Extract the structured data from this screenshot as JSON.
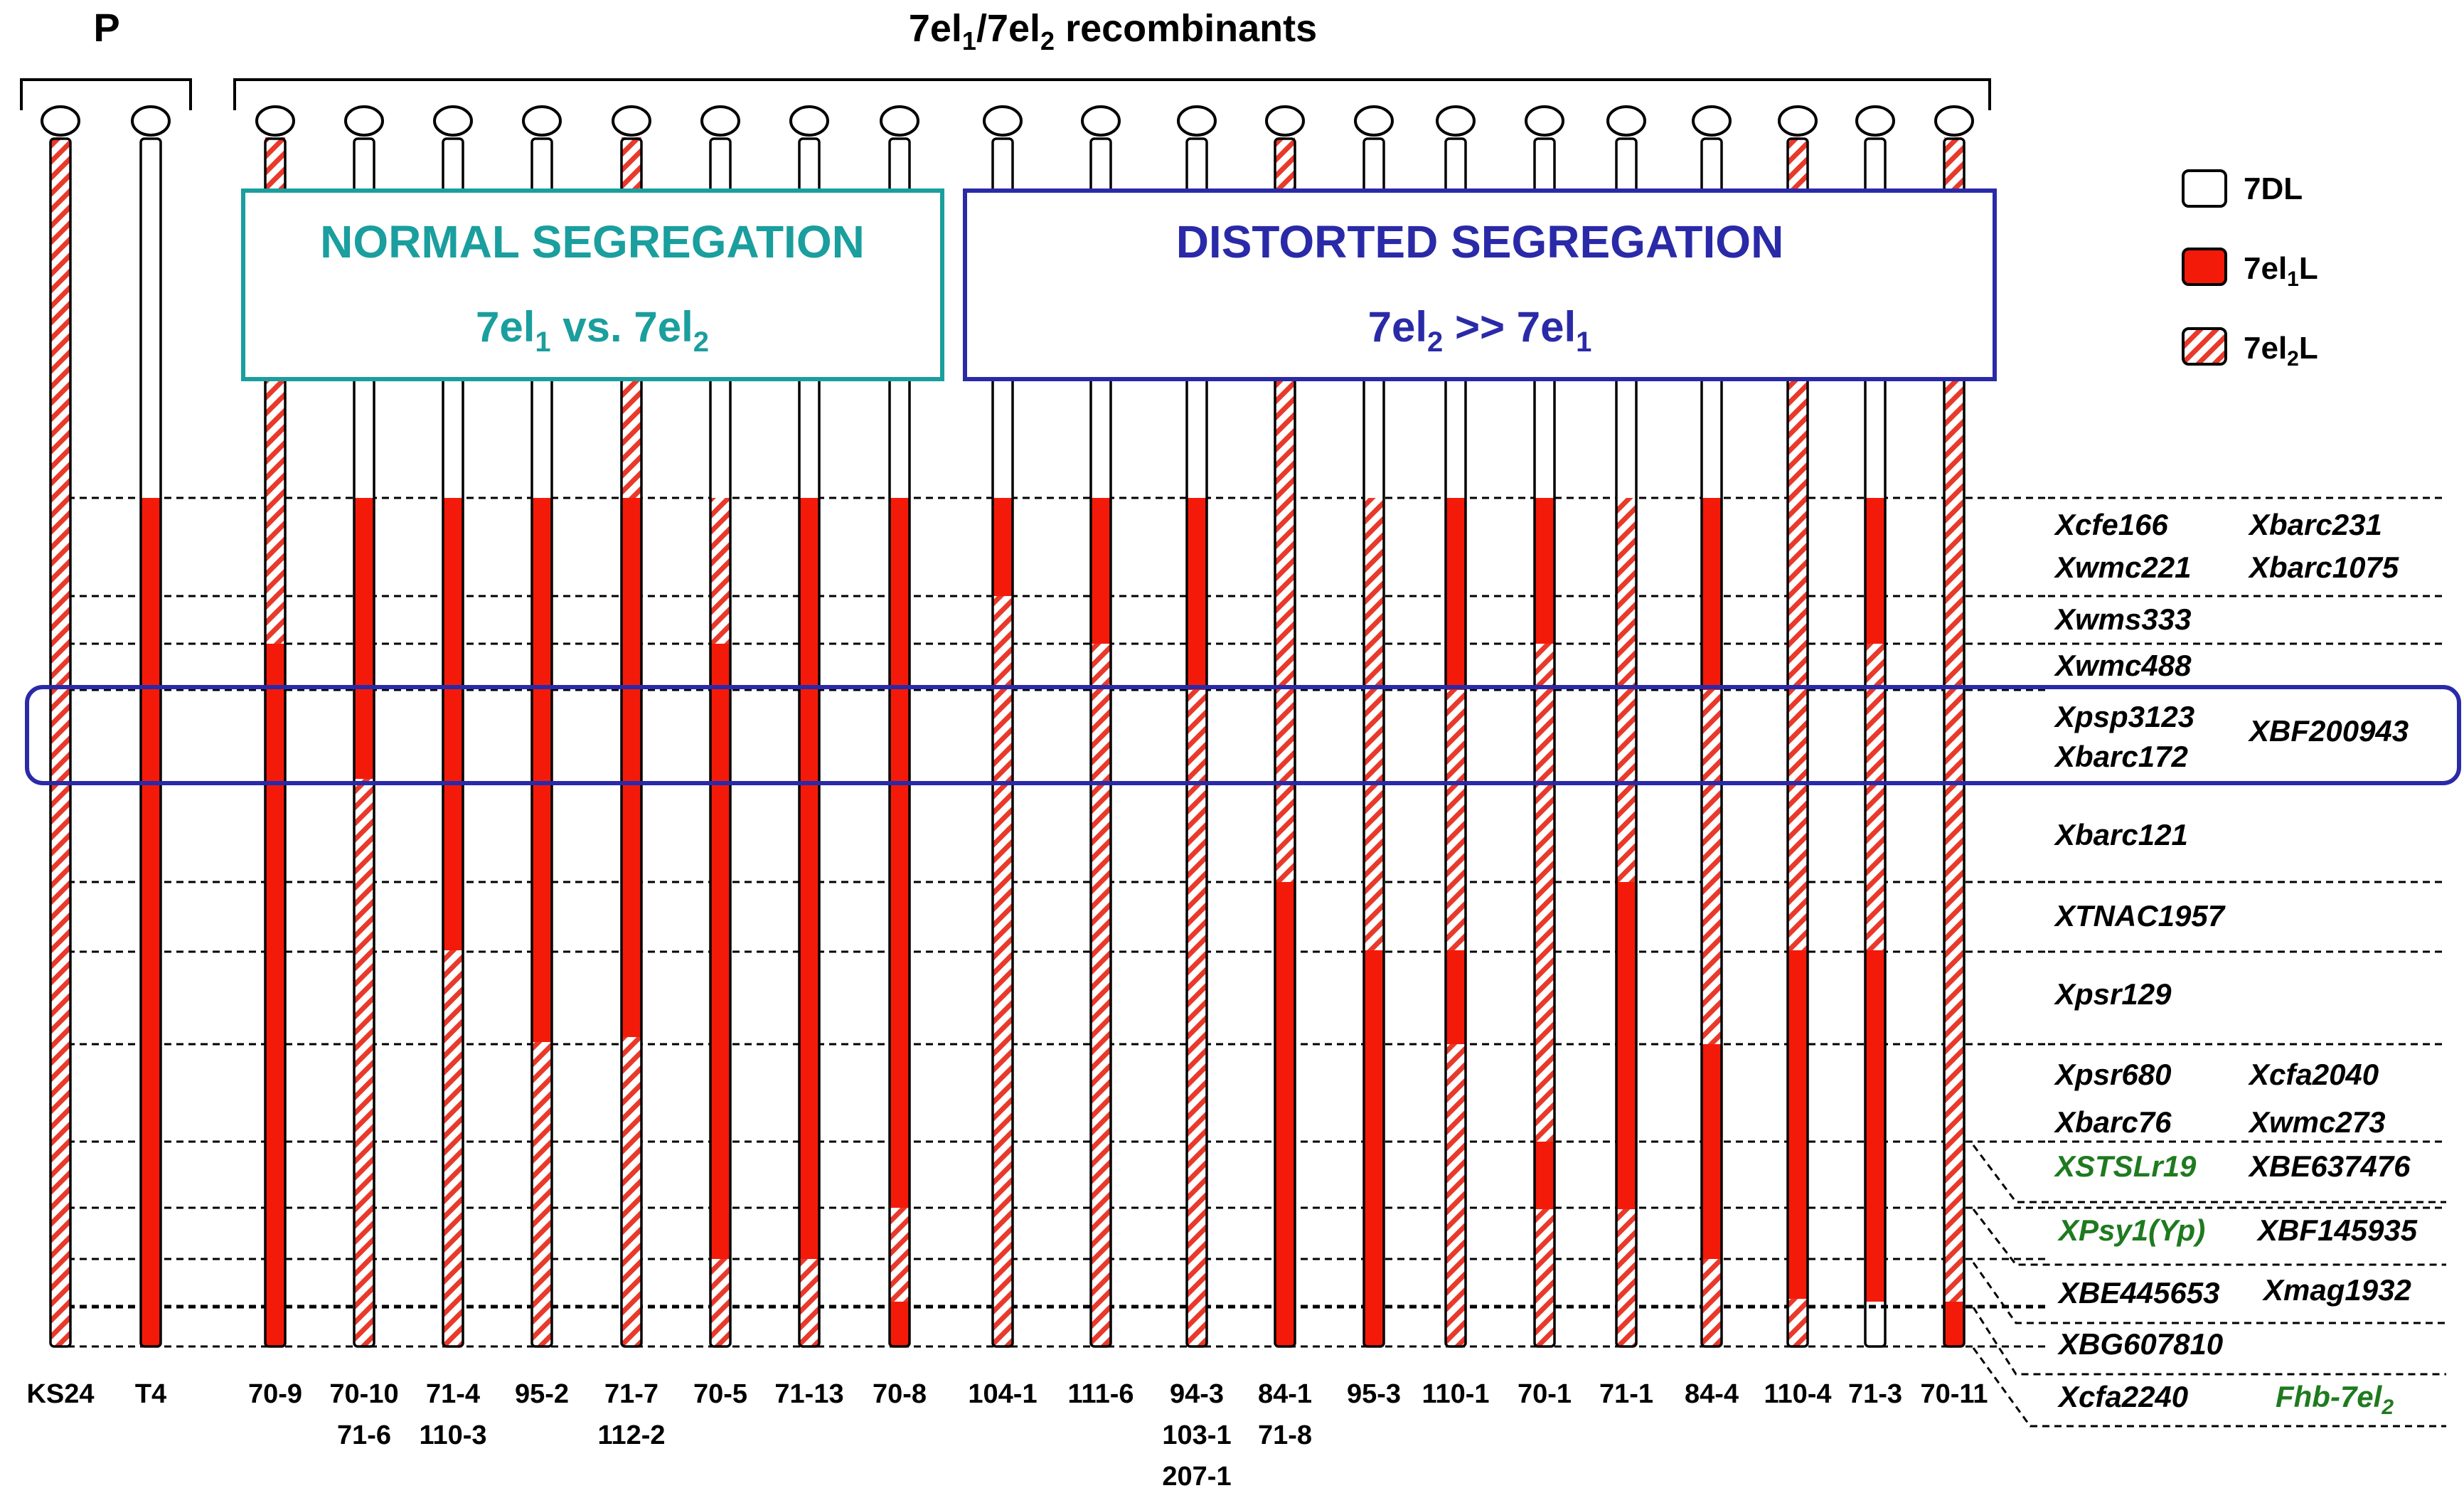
{
  "header": {
    "parents_label": "P",
    "recombinants_label": "7el",
    "recombinants_sub1": "1",
    "recombinants_mid": "/7el",
    "recombinants_sub2": "2",
    "recombinants_tail": " recombinants"
  },
  "boxes": {
    "normal": {
      "title": "NORMAL SEGREGATION",
      "line_a": "7el",
      "sub_a": "1",
      "line_b": " vs. 7el",
      "sub_b": "2",
      "color": "#1a9e9e"
    },
    "distorted": {
      "title": "DISTORTED SEGREGATION",
      "line_a": "7el",
      "sub_a": "2",
      "line_b": " >> 7el",
      "sub_b": "1",
      "color": "#2a2aa8"
    }
  },
  "legend": [
    {
      "key": "white",
      "label": "7DL"
    },
    {
      "key": "red",
      "label": "7el",
      "sub": "1",
      "tail": "L"
    },
    {
      "key": "hatch",
      "label": "7el",
      "sub": "2",
      "tail": "L"
    }
  ],
  "markers": [
    {
      "left": "Xcfe166",
      "right": "Xbarc231"
    },
    {
      "left": "Xwmc221",
      "right": "Xbarc1075"
    },
    {
      "left": "Xwms333",
      "right": ""
    },
    {
      "left": "Xwmc488",
      "right": ""
    },
    {
      "left": "Xpsp3123",
      "right": "XBF200943"
    },
    {
      "left": "Xbarc172",
      "right": ""
    },
    {
      "left": "Xbarc121",
      "right": ""
    },
    {
      "left": "XTNAC1957",
      "right": ""
    },
    {
      "left": "Xpsr129",
      "right": ""
    },
    {
      "left": "Xpsr680",
      "right": "Xcfa2040"
    },
    {
      "left": "Xbarc76",
      "right": "Xwmc273"
    },
    {
      "left": "XSTSLr19",
      "right": "XBE637476",
      "left_green": true
    },
    {
      "left": "XPsy1(Yp)",
      "right": "XBF145935",
      "left_green": true
    },
    {
      "left": "XBE445653",
      "right": "Xmag1932"
    },
    {
      "left": "XBG607810",
      "right": ""
    },
    {
      "left": "Xcfa2240",
      "right": "Fhb-7el",
      "right_sub": "2",
      "right_green": true
    }
  ],
  "columns": [
    {
      "lines": [
        "KS24"
      ],
      "pattern": [
        "hatch"
      ]
    },
    {
      "lines": [
        "T4"
      ],
      "pattern": [
        "white",
        "red"
      ]
    },
    {
      "lines": [
        "70-9"
      ],
      "pattern": [
        "hatch",
        "red"
      ]
    },
    {
      "lines": [
        "70-10",
        "71-6"
      ],
      "pattern": [
        "white",
        "red",
        "hatch"
      ]
    },
    {
      "lines": [
        "71-4",
        "110-3"
      ],
      "pattern": [
        "white",
        "red",
        "hatch"
      ]
    },
    {
      "lines": [
        "95-2"
      ],
      "pattern": [
        "white",
        "red",
        "hatch"
      ]
    },
    {
      "lines": [
        "71-7",
        "112-2"
      ],
      "pattern": [
        "hatch",
        "red",
        "hatch"
      ]
    },
    {
      "lines": [
        "70-5"
      ],
      "pattern": [
        "white",
        "hatch",
        "red",
        "hatch"
      ]
    },
    {
      "lines": [
        "71-13"
      ],
      "pattern": [
        "white",
        "red",
        "hatch"
      ]
    },
    {
      "lines": [
        "70-8"
      ],
      "pattern": [
        "white",
        "red",
        "hatch",
        "red"
      ]
    },
    {
      "lines": [
        "104-1"
      ],
      "pattern": [
        "white",
        "red",
        "hatch"
      ]
    },
    {
      "lines": [
        "111-6"
      ],
      "pattern": [
        "white",
        "red",
        "hatch"
      ]
    },
    {
      "lines": [
        "94-3",
        "103-1",
        "207-1"
      ],
      "pattern": [
        "white",
        "red",
        "hatch"
      ]
    },
    {
      "lines": [
        "84-1",
        "71-8"
      ],
      "pattern": [
        "hatch",
        "red"
      ]
    },
    {
      "lines": [
        "95-3"
      ],
      "pattern": [
        "white",
        "hatch",
        "red"
      ]
    },
    {
      "lines": [
        "110-1"
      ],
      "pattern": [
        "white",
        "red",
        "hatch",
        "red",
        "hatch"
      ]
    },
    {
      "lines": [
        "70-1"
      ],
      "pattern": [
        "white",
        "red",
        "hatch",
        "red",
        "hatch"
      ]
    },
    {
      "lines": [
        "71-1"
      ],
      "pattern": [
        "white",
        "hatch",
        "red",
        "hatch"
      ]
    },
    {
      "lines": [
        "84-4"
      ],
      "pattern": [
        "white",
        "red",
        "hatch",
        "red",
        "hatch"
      ]
    },
    {
      "lines": [
        "110-4"
      ],
      "pattern": [
        "hatch",
        "red",
        "hatch"
      ]
    },
    {
      "lines": [
        "71-3"
      ],
      "pattern": [
        "white",
        "red",
        "hatch",
        "red"
      ]
    },
    {
      "lines": [
        "70-11"
      ],
      "pattern": [
        "hatch",
        "red"
      ]
    }
  ],
  "colors": {
    "red": "#f41a0a",
    "stripe": "#e8392a",
    "normal_box": "#1a9e9e",
    "distorted_box": "#2a2aa8",
    "highlight_box": "#2a2aa8",
    "green_marker": "#1f7a1f"
  }
}
